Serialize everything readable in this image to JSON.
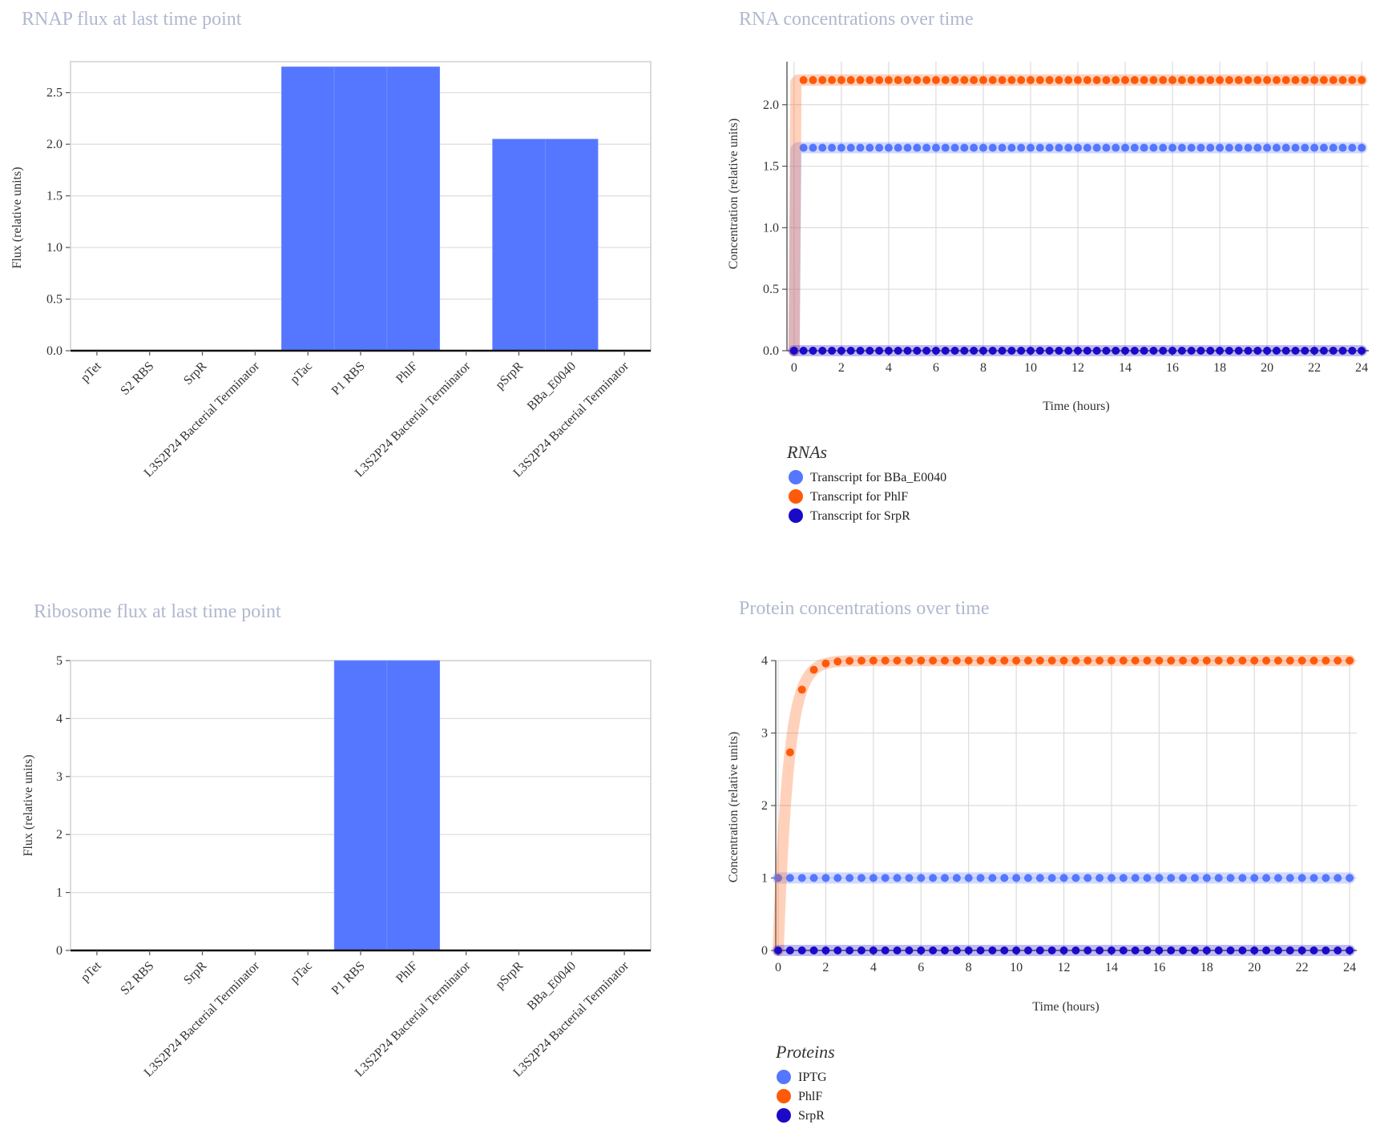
{
  "chart_data": [
    {
      "type": "bar",
      "title": "RNAP flux at last time point",
      "xlabel": "",
      "ylabel": "Flux (relative units)",
      "categories": [
        "pTet",
        "S2 RBS",
        "SrpR",
        "L3S2P24 Bacterial Terminator",
        "pTac",
        "P1 RBS",
        "PhlF",
        "L3S2P24 Bacterial Terminator",
        "pSrpR",
        "BBa_E0040",
        "L3S2P24 Bacterial Terminator"
      ],
      "values": [
        0,
        0,
        0,
        0,
        2.75,
        2.75,
        2.75,
        0,
        2.05,
        2.05,
        0
      ],
      "ylim": [
        0,
        2.8
      ],
      "yticks": [
        "0.0",
        "0.5",
        "1.0",
        "1.5",
        "2.0",
        "2.5"
      ],
      "color": "#5577ff",
      "grid": true
    },
    {
      "type": "scatter",
      "title": "RNA concentrations over time",
      "xlabel": "Time (hours)",
      "ylabel": "Concentration (relative units)",
      "xlim": [
        -0.3,
        24.3
      ],
      "ylim": [
        0,
        2.35
      ],
      "xticks": [
        "0",
        "2",
        "4",
        "6",
        "8",
        "10",
        "12",
        "14",
        "16",
        "18",
        "20",
        "22",
        "24"
      ],
      "yticks": [
        "0.0",
        "0.5",
        "1.0",
        "1.5",
        "2.0"
      ],
      "grid": true,
      "legend_title": "RNAs",
      "legend_position": "bottom-left",
      "dt": 0.4,
      "series": [
        {
          "name": "Transcript for BBa_E0040",
          "color": "#5577ff",
          "start": 0,
          "steady": 1.65,
          "rate": 60
        },
        {
          "name": "Transcript for PhlF",
          "color": "#ff5a0a",
          "start": 0,
          "steady": 2.2,
          "rate": 60
        },
        {
          "name": "Transcript for SrpR",
          "color": "#1a0ac8",
          "start": 0,
          "steady": 0,
          "rate": 60
        }
      ]
    },
    {
      "type": "bar",
      "title": "Ribosome flux at last time point",
      "xlabel": "",
      "ylabel": "Flux (relative units)",
      "categories": [
        "pTet",
        "S2 RBS",
        "SrpR",
        "L3S2P24 Bacterial Terminator",
        "pTac",
        "P1 RBS",
        "PhlF",
        "L3S2P24 Bacterial Terminator",
        "pSrpR",
        "BBa_E0040",
        "L3S2P24 Bacterial Terminator"
      ],
      "values": [
        0,
        0,
        0,
        0,
        0,
        5,
        5,
        0,
        0,
        0,
        0
      ],
      "ylim": [
        0,
        5
      ],
      "yticks": [
        "0",
        "1",
        "2",
        "3",
        "4",
        "5"
      ],
      "color": "#5577ff",
      "grid": true
    },
    {
      "type": "scatter",
      "title": "Protein concentrations over time",
      "xlabel": "Time (hours)",
      "ylabel": "Concentration (relative units)",
      "xlim": [
        -0.1,
        24.3
      ],
      "ylim": [
        0,
        4
      ],
      "xticks": [
        "0",
        "2",
        "4",
        "6",
        "8",
        "10",
        "12",
        "14",
        "16",
        "18",
        "20",
        "22",
        "24"
      ],
      "yticks": [
        "0",
        "1",
        "2",
        "3",
        "4"
      ],
      "grid": true,
      "legend_title": "Proteins",
      "legend_position": "bottom-left",
      "dt": 0.5,
      "series": [
        {
          "name": "IPTG",
          "color": "#5577ff",
          "start": 1,
          "steady": 1,
          "rate": 60
        },
        {
          "name": "PhlF",
          "color": "#ff5a0a",
          "start": 0,
          "steady": 4,
          "rate": 2.3
        },
        {
          "name": "SrpR",
          "color": "#1a0ac8",
          "start": 0,
          "steady": 0,
          "rate": 60
        }
      ]
    }
  ]
}
